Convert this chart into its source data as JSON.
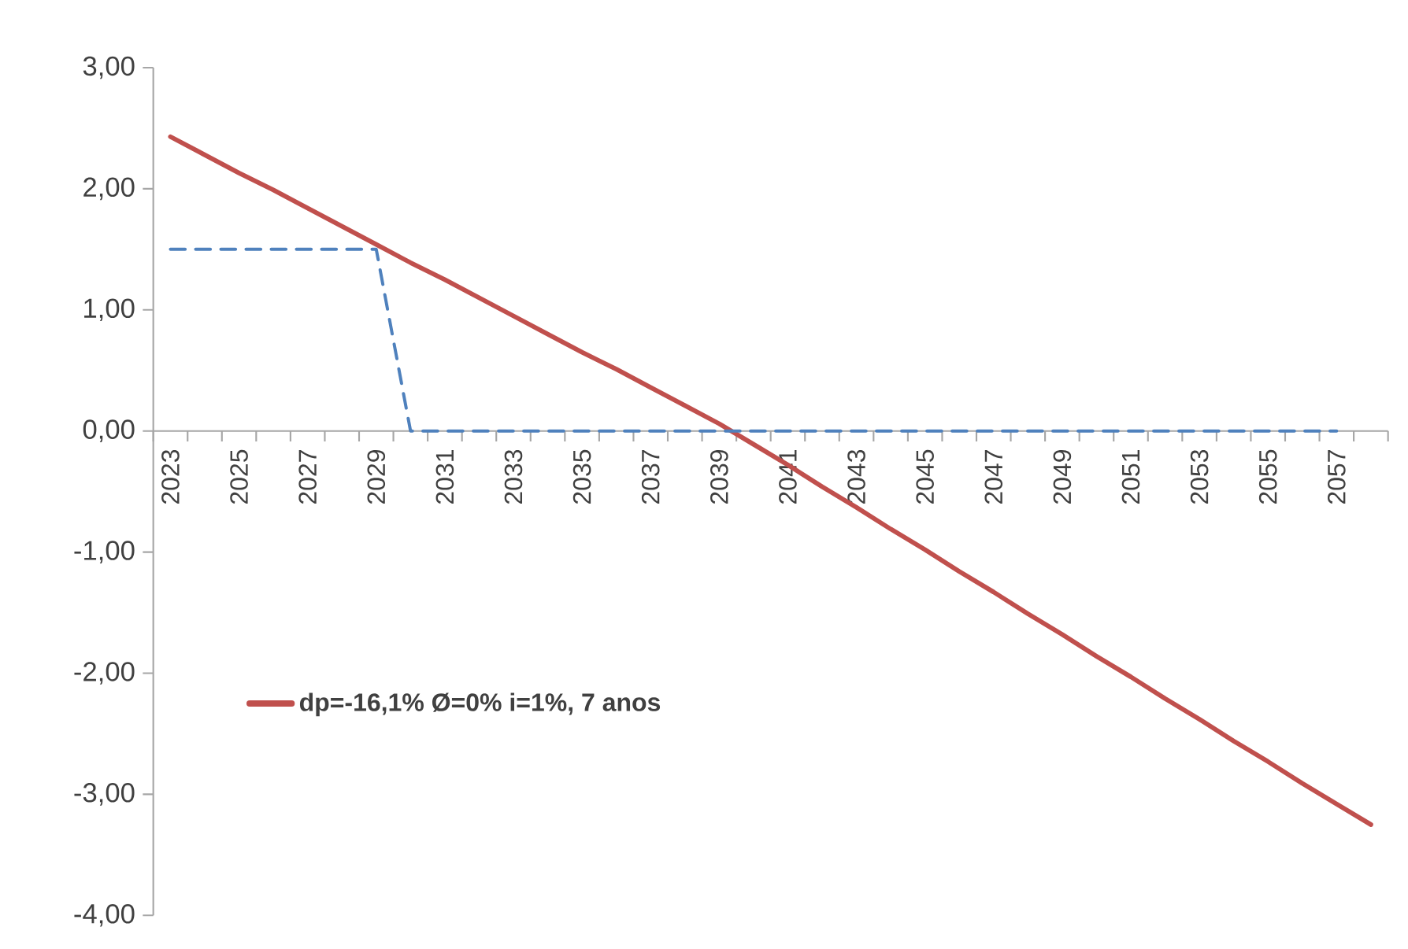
{
  "chart_data": {
    "type": "line",
    "categories": [
      "2023",
      null,
      "2025",
      null,
      "2027",
      null,
      "2029",
      null,
      "2031",
      null,
      "2033",
      null,
      "2035",
      null,
      "2037",
      null,
      "2039",
      null,
      "2041",
      null,
      "2043",
      null,
      "2045",
      null,
      "2047",
      null,
      "2049",
      null,
      "2051",
      null,
      "2053",
      null,
      "2055",
      null,
      "2057",
      null
    ],
    "series": [
      {
        "name": "dp=-16,1% Ø=0% i=1%, 7 anos",
        "color": "#c0504d",
        "line_style": "solid",
        "values": [
          2.43,
          2.28,
          2.13,
          1.99,
          1.84,
          1.69,
          1.54,
          1.39,
          1.25,
          1.1,
          0.95,
          0.8,
          0.65,
          0.51,
          0.36,
          0.21,
          0.06,
          -0.11,
          -0.28,
          -0.46,
          -0.63,
          -0.81,
          -0.98,
          -1.16,
          -1.33,
          -1.51,
          -1.68,
          -1.86,
          -2.03,
          -2.21,
          -2.38,
          -2.56,
          -2.73,
          -2.91,
          -3.08,
          -3.25
        ]
      },
      {
        "color": "#4f81bd",
        "line_style": "dashed",
        "values": [
          1.5,
          1.5,
          1.5,
          1.5,
          1.5,
          1.5,
          1.5,
          0,
          0,
          0,
          0,
          0,
          0,
          0,
          0,
          0,
          0,
          0,
          0,
          0,
          0,
          0,
          0,
          0,
          0,
          0,
          0,
          0,
          0,
          0,
          0,
          0,
          0,
          0,
          0,
          null
        ]
      }
    ],
    "ylim": [
      -4,
      3
    ],
    "yticks": [
      {
        "value": 3,
        "label": "3,00"
      },
      {
        "value": 2,
        "label": "2,00"
      },
      {
        "value": 1,
        "label": "1,00"
      },
      {
        "value": 0,
        "label": "0,00"
      },
      {
        "value": -1,
        "label": "-1,00"
      },
      {
        "value": -2,
        "label": "-2,00"
      },
      {
        "value": -3,
        "label": "-3,00"
      },
      {
        "value": -4,
        "label": "-4,00"
      }
    ],
    "grid": false,
    "legend": "left",
    "marker": "none"
  }
}
